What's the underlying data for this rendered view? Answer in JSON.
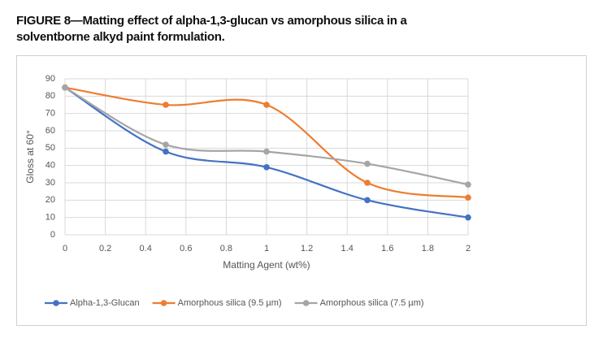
{
  "chart_data": {
    "type": "line",
    "title": "FIGURE 8—Matting effect of alpha-1,3-glucan vs amorphous silica in a solventborne alkyd paint formulation.",
    "x_label": "Matting Agent (wt%)",
    "y_label": "Gloss at 60°",
    "x": [
      0,
      0.5,
      1,
      1.5,
      2
    ],
    "series": [
      {
        "name": "Alpha-1,3-Glucan",
        "color": "#4472c4",
        "values": [
          85,
          48,
          39,
          20,
          10
        ]
      },
      {
        "name": "Amorphous silica (9.5 µm)",
        "color": "#ed7d31",
        "values": [
          85,
          75,
          75,
          30,
          21.5
        ]
      },
      {
        "name": "Amorphous silica (7.5 µm)",
        "color": "#a5a5a5",
        "values": [
          85,
          52,
          48,
          41,
          29
        ]
      }
    ],
    "xlim": [
      0,
      2
    ],
    "xticks": [
      0,
      0.2,
      0.4,
      0.6,
      0.8,
      1,
      1.2,
      1.4,
      1.6,
      1.8,
      2
    ],
    "ylim": [
      0,
      90
    ],
    "yticks": [
      0,
      10,
      20,
      30,
      40,
      50,
      60,
      70,
      80,
      90
    ],
    "grid": true,
    "smooth": true,
    "legend": "bottom"
  }
}
